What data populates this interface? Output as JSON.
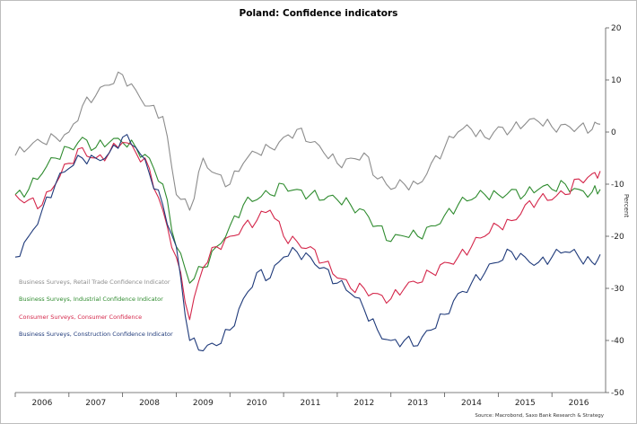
{
  "chart_data": {
    "type": "line",
    "title": "Poland: Confidence indicators",
    "ylabel": "Percent",
    "xlabel": "",
    "ylim": [
      -50,
      20
    ],
    "y_ticks": [
      20,
      10,
      0,
      -10,
      -20,
      -30,
      -40,
      -50
    ],
    "x_range": [
      2005.5,
      2016.5
    ],
    "x_categories": [
      "2006",
      "2007",
      "2008",
      "2009",
      "2010",
      "2011",
      "2012",
      "2013",
      "2014",
      "2015",
      "2016"
    ],
    "source": "Source: Macrobond, Saxo Bank Research & Strategy",
    "series": [
      {
        "name": "Business Surveys, Retail Trade Confidence Indicator",
        "color": "#8c8c8c",
        "x": [
          2005.5,
          2005.75,
          2006.0,
          2006.25,
          2006.5,
          2006.75,
          2007.0,
          2007.25,
          2007.5,
          2007.75,
          2008.0,
          2008.25,
          2008.5,
          2008.75,
          2009.0,
          2009.25,
          2009.5,
          2009.75,
          2010.0,
          2010.25,
          2010.5,
          2010.75,
          2011.0,
          2011.25,
          2011.5,
          2011.75,
          2012.0,
          2012.25,
          2012.5,
          2012.75,
          2013.0,
          2013.25,
          2013.5,
          2013.75,
          2014.0,
          2014.25,
          2014.5,
          2014.75,
          2015.0,
          2015.25,
          2015.5,
          2015.75,
          2016.0,
          2016.25,
          2016.4
        ],
        "y": [
          -4.5,
          -3,
          -2,
          -1,
          0,
          5,
          7,
          9,
          11,
          8,
          5,
          3,
          -12,
          -15,
          -5,
          -8,
          -10,
          -6,
          -4,
          -3,
          -1,
          0.5,
          -2,
          -4,
          -6,
          -5,
          -4,
          -9,
          -11,
          -10,
          -10,
          -6,
          -3,
          0,
          0.5,
          -1,
          1,
          0.5,
          1.5,
          2,
          1,
          1.5,
          1,
          0.5,
          1.5
        ]
      },
      {
        "name": "Business Surveys, Industrial Confidence Indicator",
        "color": "#2e8b2e",
        "x": [
          2005.5,
          2005.75,
          2006.0,
          2006.25,
          2006.5,
          2006.75,
          2007.0,
          2007.25,
          2007.5,
          2007.75,
          2008.0,
          2008.25,
          2008.5,
          2008.75,
          2009.0,
          2009.25,
          2009.5,
          2009.75,
          2010.0,
          2010.25,
          2010.5,
          2010.75,
          2011.0,
          2011.25,
          2011.5,
          2011.75,
          2012.0,
          2012.25,
          2012.5,
          2012.75,
          2013.0,
          2013.25,
          2013.5,
          2013.75,
          2014.0,
          2014.25,
          2014.5,
          2014.75,
          2015.0,
          2015.25,
          2015.5,
          2015.75,
          2016.0,
          2016.25,
          2016.4
        ],
        "y": [
          -12,
          -11,
          -8,
          -5,
          -3,
          -1,
          -3,
          -2,
          -2,
          -3,
          -5,
          -10,
          -22,
          -29,
          -26,
          -22,
          -18,
          -14,
          -13,
          -12,
          -10,
          -11,
          -12,
          -13,
          -13,
          -14,
          -15,
          -18,
          -21,
          -20,
          -20,
          -18,
          -16,
          -14,
          -13,
          -12,
          -12,
          -11,
          -12,
          -11,
          -11,
          -10,
          -11,
          -11.5,
          -11
        ]
      },
      {
        "name": "Consumer Surveys, Consumer Confidence",
        "color": "#d4264a",
        "x": [
          2005.5,
          2005.75,
          2006.0,
          2006.25,
          2006.5,
          2006.75,
          2007.0,
          2007.25,
          2007.5,
          2007.75,
          2008.0,
          2008.25,
          2008.5,
          2008.75,
          2009.0,
          2009.25,
          2009.5,
          2009.75,
          2010.0,
          2010.25,
          2010.5,
          2010.75,
          2011.0,
          2011.25,
          2011.5,
          2011.75,
          2012.0,
          2012.25,
          2012.5,
          2012.75,
          2013.0,
          2013.25,
          2013.5,
          2013.75,
          2014.0,
          2014.25,
          2014.5,
          2014.75,
          2015.0,
          2015.25,
          2015.5,
          2015.75,
          2016.0,
          2016.25,
          2016.4
        ],
        "y": [
          -12,
          -13,
          -14,
          -10,
          -6,
          -3,
          -5,
          -4,
          -2,
          -4,
          -7,
          -15,
          -24,
          -36,
          -26,
          -22,
          -20,
          -18,
          -17,
          -15,
          -20,
          -21,
          -22,
          -25,
          -28,
          -30,
          -30,
          -31,
          -32,
          -30,
          -29,
          -27,
          -25,
          -24,
          -22,
          -20,
          -18,
          -17,
          -14,
          -13,
          -13,
          -12,
          -9,
          -8,
          -7.5
        ]
      },
      {
        "name": "Business Surveys, Construction Confidence Indicator",
        "color": "#1f3a7a",
        "x": [
          2005.5,
          2005.75,
          2006.0,
          2006.25,
          2006.5,
          2006.75,
          2007.0,
          2007.25,
          2007.5,
          2007.75,
          2008.0,
          2008.25,
          2008.5,
          2008.75,
          2009.0,
          2009.25,
          2009.5,
          2009.75,
          2010.0,
          2010.25,
          2010.5,
          2010.75,
          2011.0,
          2011.25,
          2011.5,
          2011.75,
          2012.0,
          2012.25,
          2012.5,
          2012.75,
          2013.0,
          2013.25,
          2013.5,
          2013.75,
          2014.0,
          2014.25,
          2014.5,
          2014.75,
          2015.0,
          2015.25,
          2015.5,
          2015.75,
          2016.0,
          2016.25,
          2016.4
        ],
        "y": [
          -24,
          -20,
          -15,
          -10,
          -7,
          -5,
          -5,
          -4,
          -1,
          -3,
          -8,
          -14,
          -22,
          -40,
          -42,
          -41,
          -38,
          -32,
          -27,
          -28,
          -24,
          -23,
          -24,
          -26,
          -29,
          -31,
          -34,
          -38,
          -40,
          -40,
          -41,
          -38,
          -35,
          -31,
          -29,
          -27,
          -25,
          -23,
          -24,
          -25,
          -24,
          -23,
          -24,
          -25,
          -23.5
        ]
      }
    ]
  }
}
